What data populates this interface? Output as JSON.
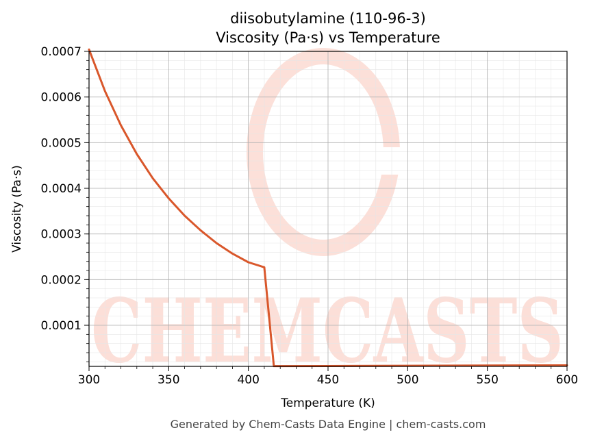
{
  "chart_data": {
    "type": "line",
    "title": "diisobutylamine (110-96-3)",
    "subtitle": "Viscosity (Pa·s) vs Temperature",
    "xlabel": "Temperature (K)",
    "ylabel": "Viscosity (Pa·s)",
    "xlim": [
      300,
      600
    ],
    "ylim": [
      1e-05,
      0.0007
    ],
    "x_ticks": [
      "300",
      "350",
      "400",
      "450",
      "500",
      "550",
      "600"
    ],
    "y_ticks": [
      "0.0001",
      "0.0002",
      "0.0003",
      "0.0004",
      "0.0005",
      "0.0006",
      "0.0007"
    ],
    "grid": true,
    "series": [
      {
        "color": "#d9572b",
        "x": [
          300,
          310,
          320,
          330,
          340,
          350,
          360,
          370,
          380,
          390,
          400,
          410,
          416,
          420,
          450,
          500,
          550,
          600
        ],
        "y": [
          0.000704,
          0.000613,
          0.000538,
          0.000475,
          0.000422,
          0.000378,
          0.00034,
          0.000308,
          0.00028,
          0.000257,
          0.000238,
          0.000227,
          1.05e-05,
          1.05e-05,
          1.08e-05,
          1.13e-05,
          1.18e-05,
          1.23e-05
        ]
      }
    ]
  },
  "watermark": {
    "text": "CHEMCASTS",
    "color": "#fbd5cc"
  },
  "footer": "Generated by Chem-Casts Data Engine | chem-casts.com"
}
